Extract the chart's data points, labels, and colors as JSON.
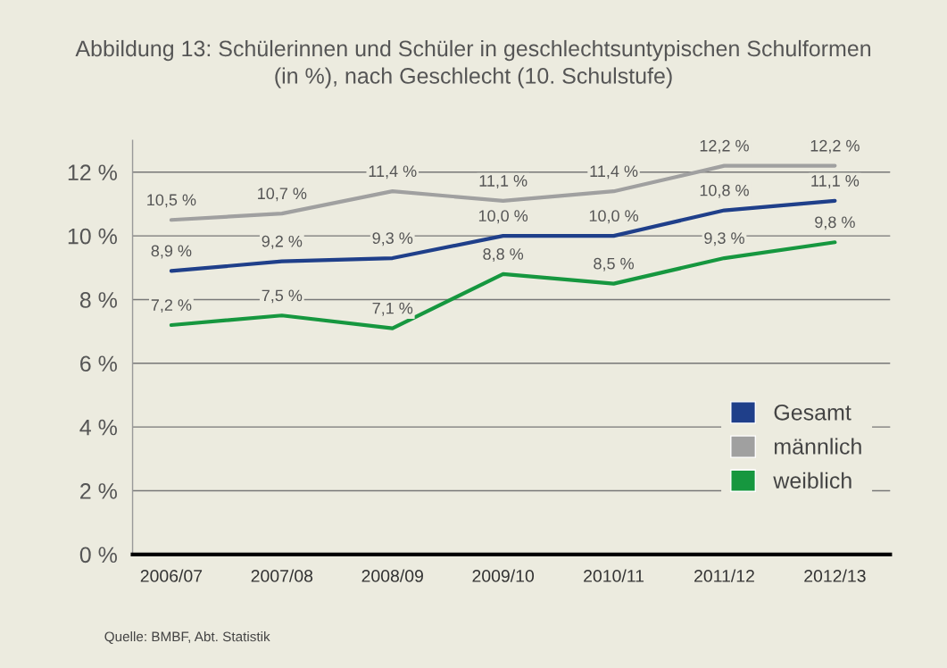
{
  "chart_data": {
    "type": "line",
    "title": "Abbildung 13: Schülerinnen und Schüler in geschlechtsuntypischen Schulformen\n(in %), nach Geschlecht (10. Schulstufe)",
    "categories": [
      "2006/07",
      "2007/08",
      "2008/09",
      "2009/10",
      "2010/11",
      "2011/12",
      "2012/13"
    ],
    "series": [
      {
        "name": "Gesamt",
        "color": "#1f3f8a",
        "values": [
          8.9,
          9.2,
          9.3,
          10.0,
          10.0,
          10.8,
          11.1
        ],
        "value_labels": [
          "8,9 %",
          "9,2 %",
          "9,3 %",
          "10,0 %",
          "10,0 %",
          "10,8 %",
          "11,1 %"
        ]
      },
      {
        "name": "männlich",
        "color": "#a0a0a0",
        "values": [
          10.5,
          10.7,
          11.4,
          11.1,
          11.4,
          12.2,
          12.2
        ],
        "value_labels": [
          "10,5 %",
          "10,7 %",
          "11,4 %",
          "11,1 %",
          "11,4 %",
          "12,2 %",
          "12,2 %"
        ]
      },
      {
        "name": "weiblich",
        "color": "#16973f",
        "values": [
          7.2,
          7.5,
          7.1,
          8.8,
          8.5,
          9.3,
          9.8
        ],
        "value_labels": [
          "7,2 %",
          "7,5 %",
          "7,1 %",
          "8,8 %",
          "8,5 %",
          "9,3 %",
          "9,8 %"
        ]
      }
    ],
    "ylim": [
      0,
      13
    ],
    "yticks": [
      {
        "value": 0,
        "label": "0 %"
      },
      {
        "value": 2,
        "label": "2 %"
      },
      {
        "value": 4,
        "label": "4 %"
      },
      {
        "value": 6,
        "label": "6 %"
      },
      {
        "value": 8,
        "label": "8 %"
      },
      {
        "value": 10,
        "label": "10 %"
      },
      {
        "value": 12,
        "label": "12 %"
      }
    ],
    "grid": "y",
    "legend": "bottom right",
    "marker": "none",
    "line_style": "solid",
    "annotations": [
      "Quelle: BMBF, Abt. Statistik"
    ]
  }
}
